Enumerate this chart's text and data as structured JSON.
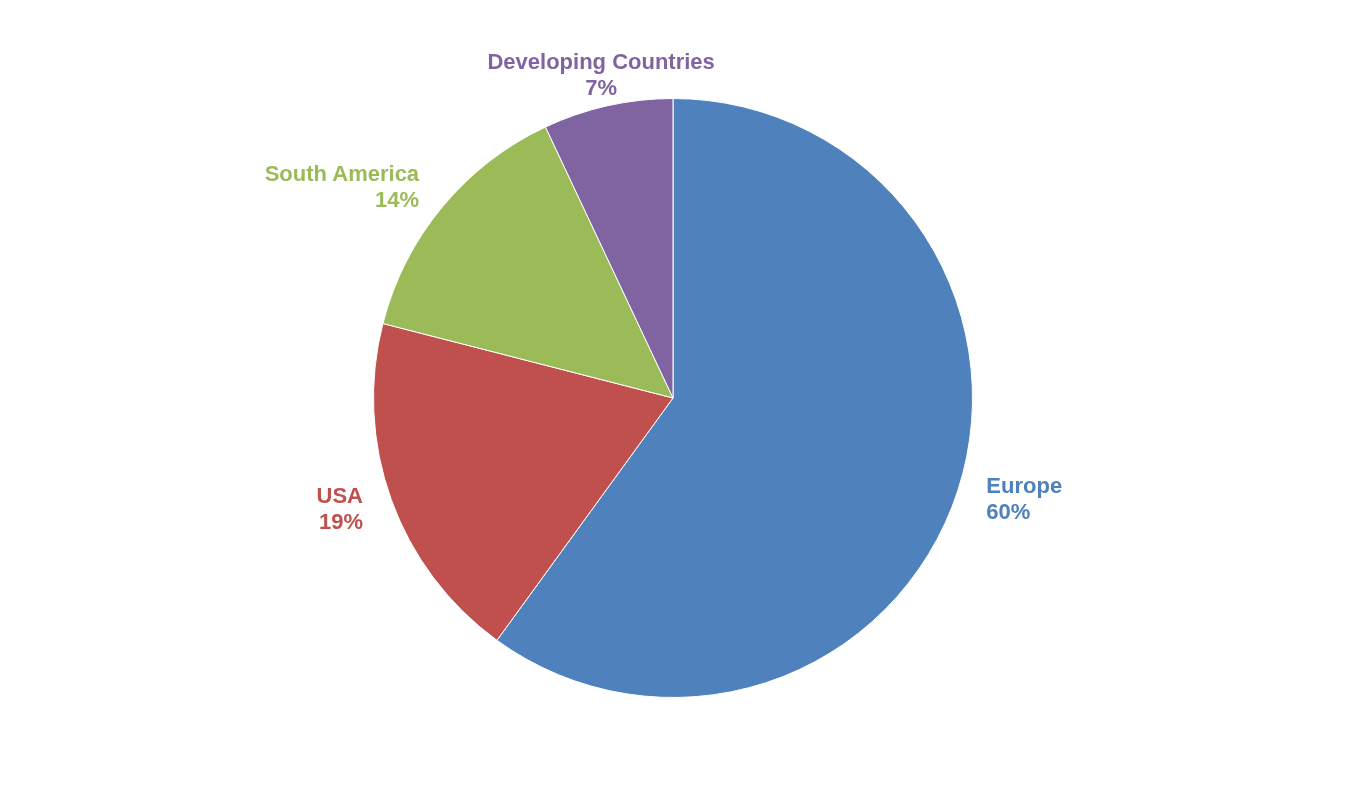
{
  "chart_data": {
    "type": "pie",
    "categories": [
      "Europe",
      "USA",
      "South America",
      "Developing Countries"
    ],
    "values": [
      60,
      19,
      14,
      7
    ],
    "colors": [
      "#4f81bd",
      "#c0504d",
      "#9bbb59",
      "#8064a2"
    ],
    "value_labels": [
      "60%",
      "19%",
      "14%",
      "7%"
    ],
    "legend": false
  }
}
